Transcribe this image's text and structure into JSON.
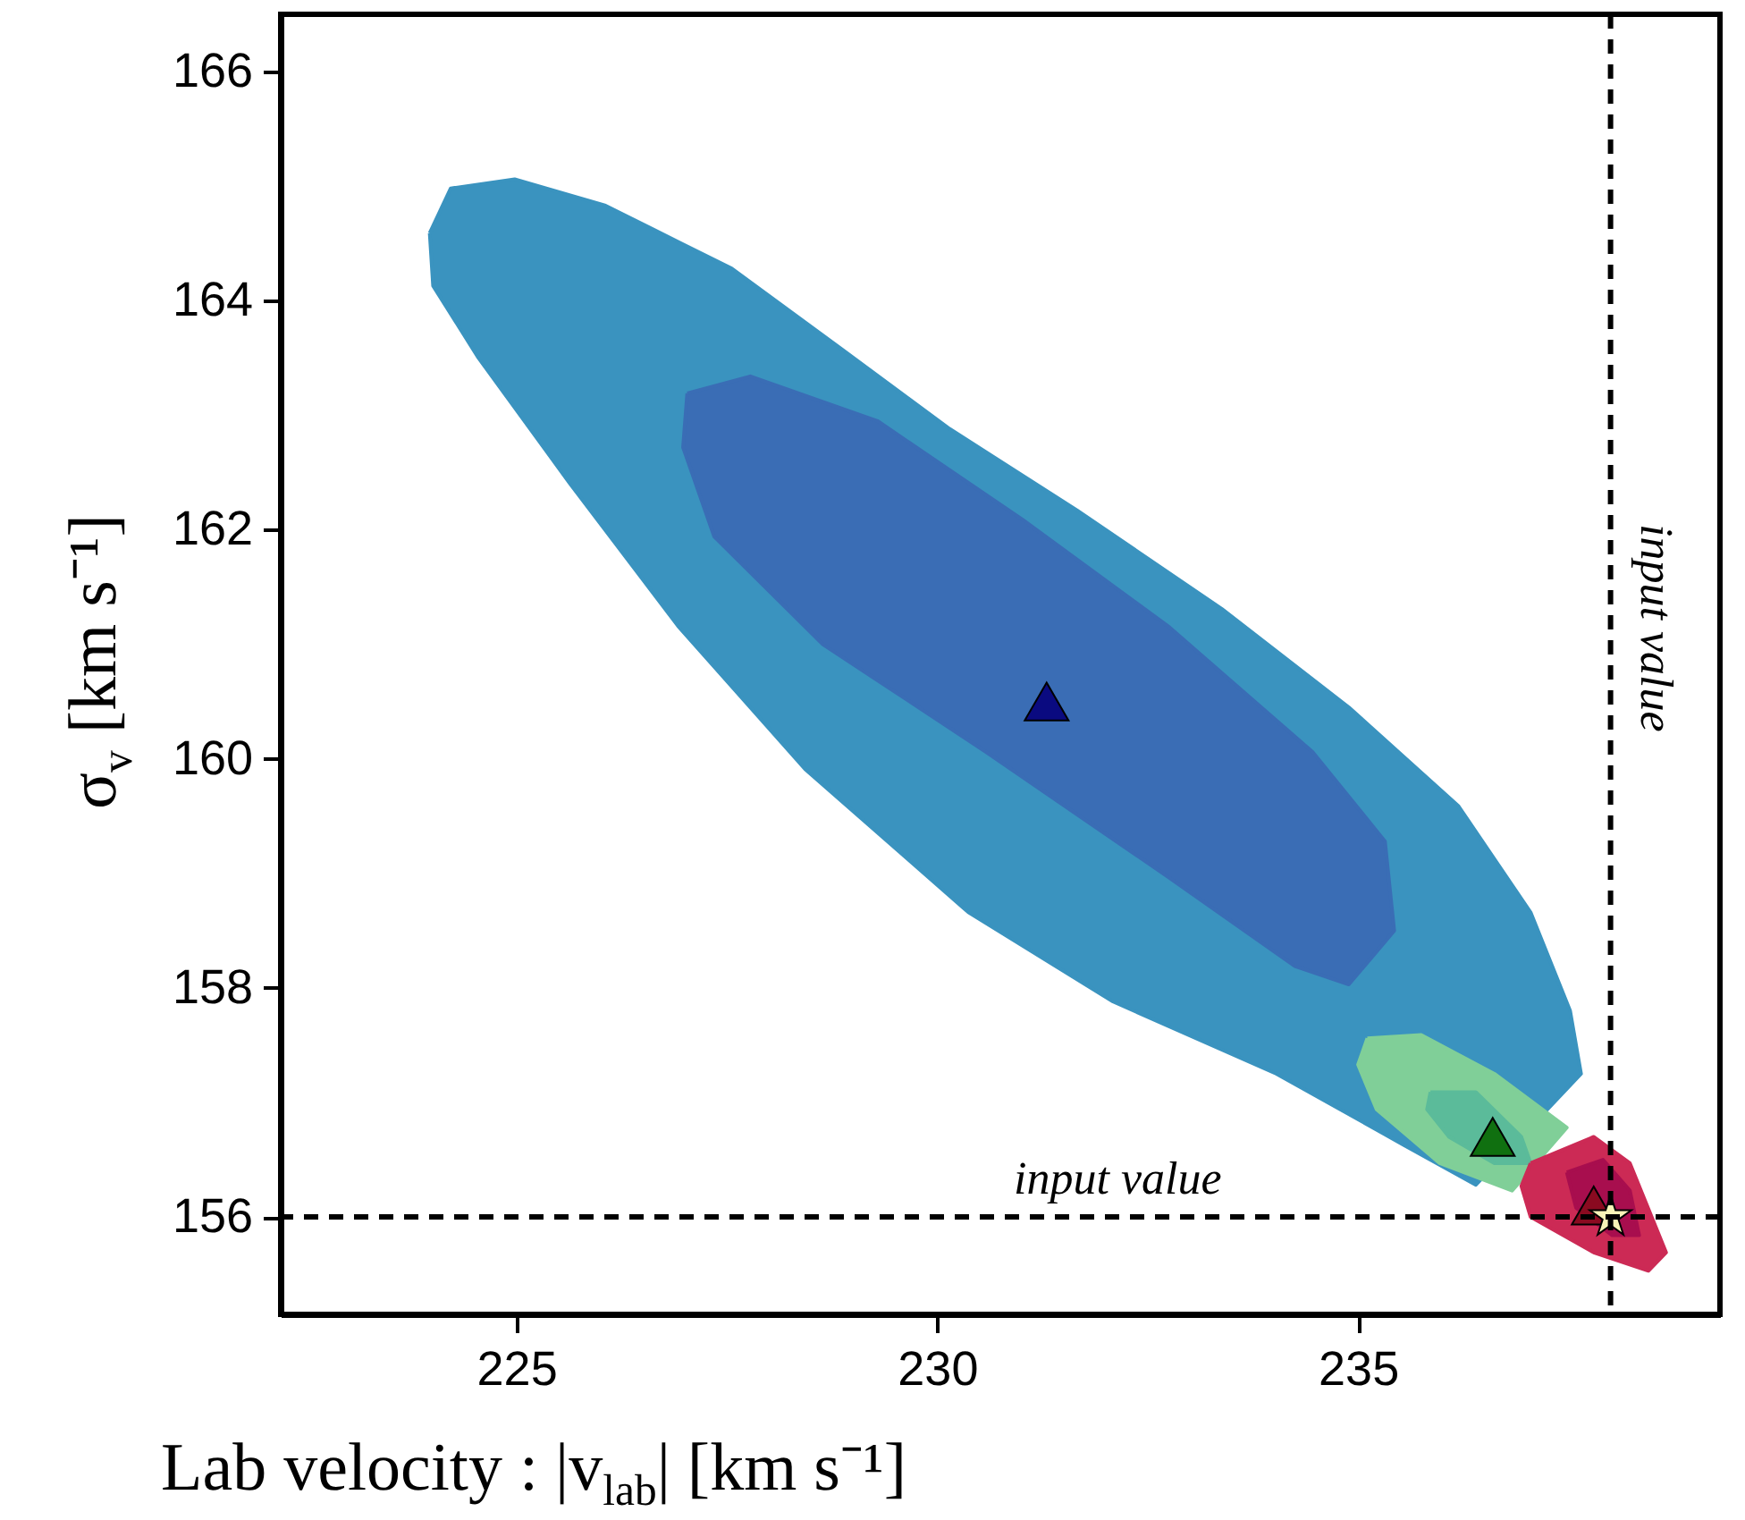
{
  "chart_data": {
    "type": "area",
    "xlabel": "Lab velocity :  |v$_{lab}$| [km s⁻¹]",
    "ylabel": "σ$_{v}$ [km s⁻¹]",
    "xlim": [
      222.2,
      239.3
    ],
    "ylim": [
      155.15,
      166.5
    ],
    "xticks": [
      225,
      230,
      235
    ],
    "yticks": [
      156,
      158,
      160,
      162,
      164,
      166
    ],
    "grid": false,
    "series": [
      {
        "color": "#3a93bf",
        "x": [
          223.97,
          224.22,
          224.98,
          226.06,
          227.56,
          228.86,
          230.15,
          231.66,
          233.38,
          234.89,
          236.19,
          237.05,
          237.52,
          237.65,
          null,
          null,
          236.4,
          235.54,
          234.03,
          232.09,
          230.37,
          228.43,
          226.92,
          225.63,
          224.55,
          224.01
        ],
        "values": [
          164.59,
          164.98,
          165.06,
          164.83,
          164.28,
          163.58,
          162.88,
          162.17,
          161.31,
          160.45,
          159.59,
          158.66,
          157.8,
          157.25,
          null,
          null,
          156.28,
          156.63,
          157.25,
          157.88,
          158.66,
          159.91,
          161.16,
          162.41,
          163.5,
          164.13
        ]
      },
      {
        "color": "#3a6db5",
        "x": [
          227.03,
          227.78,
          229.29,
          231.01,
          232.74,
          234.46,
          235.32,
          235.43,
          234.89,
          234.25,
          232.74,
          230.58,
          228.64,
          227.35,
          226.98
        ],
        "values": [
          163.19,
          163.34,
          162.95,
          162.09,
          161.16,
          160.06,
          159.28,
          158.5,
          158.03,
          158.19,
          158.97,
          160.06,
          161.0,
          161.94,
          162.72
        ]
      },
      {
        "color": "#80cf98",
        "x": [
          235.11,
          235.75,
          236.62,
          237.48,
          null,
          null,
          236.83,
          235.97,
          235.22,
          235.0
        ],
        "values": [
          157.56,
          157.59,
          157.25,
          156.78,
          null,
          null,
          156.23,
          156.47,
          156.94,
          157.33
        ]
      },
      {
        "color": "#5bbb9a",
        "x": [
          235.86,
          236.4,
          236.94,
          237.05,
          236.62,
          236.08,
          235.82
        ],
        "values": [
          157.09,
          157.09,
          156.7,
          156.47,
          156.47,
          156.7,
          156.94
        ]
      },
      {
        "color": "#cc2a55",
        "x": [
          237.05,
          237.8,
          238.23,
          238.66,
          238.45,
          237.8,
          237.05,
          236.94
        ],
        "values": [
          156.47,
          156.7,
          156.47,
          155.69,
          155.53,
          155.69,
          156.0,
          156.27
        ]
      },
      {
        "color": "#a80e4e",
        "x": [
          237.48,
          237.91,
          238.23,
          238.34,
          238.02,
          237.59
        ],
        "values": [
          156.39,
          156.5,
          156.23,
          155.84,
          155.84,
          156.08
        ]
      },
      {
        "type": "scatter",
        "marker": "triangle",
        "color": "#0a0a80",
        "x": [
          231.3
        ],
        "values": [
          160.5
        ]
      },
      {
        "type": "scatter",
        "marker": "triangle",
        "color": "#107010",
        "x": [
          236.6
        ],
        "values": [
          156.7
        ]
      },
      {
        "type": "scatter",
        "marker": "triangle",
        "color": "#8a0a20",
        "x": [
          237.8
        ],
        "values": [
          156.1
        ]
      },
      {
        "type": "scatter",
        "marker": "star",
        "color": "#f8f4b8",
        "x": [
          238.0
        ],
        "values": [
          156.0
        ]
      }
    ],
    "ref_lines": [
      {
        "axis": "x",
        "value": 238,
        "label": "input value",
        "line_style": "dashed"
      },
      {
        "axis": "y",
        "value": 156,
        "label": "input value",
        "line_style": "dashed"
      }
    ]
  }
}
